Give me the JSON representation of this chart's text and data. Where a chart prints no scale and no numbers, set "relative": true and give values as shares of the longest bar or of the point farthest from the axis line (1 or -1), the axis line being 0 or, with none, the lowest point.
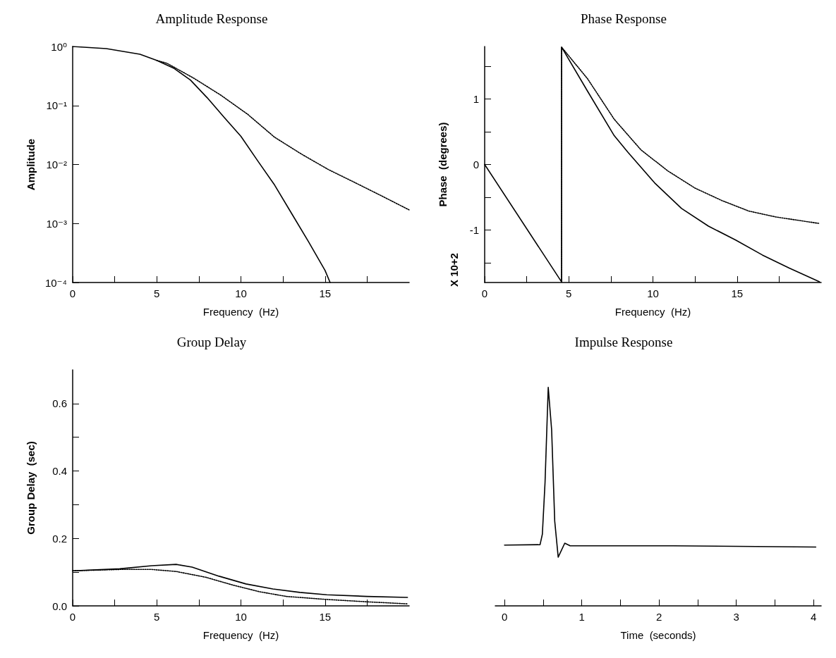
{
  "chart_data": [
    {
      "type": "line",
      "title": "Amplitude Response",
      "xlabel": "Frequency  (Hz)",
      "ylabel": "Amplitude",
      "log": true,
      "grid": false,
      "marker": "none",
      "xlim": [
        0,
        20
      ],
      "xticks": [
        0,
        {
          "value": 2.5,
          "label": null
        },
        5,
        {
          "value": 7.5,
          "label": null
        },
        10,
        {
          "value": 12.5,
          "label": null
        },
        15,
        {
          "value": 17.5,
          "label": null
        }
      ],
      "ylim": [
        0.0001,
        1
      ],
      "yticks": [
        {
          "value": 1,
          "label": "10⁰"
        },
        {
          "value": 0.1,
          "label": "10⁻¹"
        },
        {
          "value": 0.01,
          "label": "10⁻²"
        },
        {
          "value": 0.001,
          "label": "10⁻³"
        },
        {
          "value": 0.0001,
          "label": "10⁻⁴"
        }
      ],
      "series": [
        {
          "color": "#000000",
          "line_style": "solid",
          "x": [
            0,
            2,
            4,
            5,
            6,
            7,
            8,
            9,
            10,
            11,
            12,
            13,
            14,
            15,
            15.3
          ],
          "values": [
            1,
            0.92,
            0.74,
            0.58,
            0.43,
            0.27,
            0.135,
            0.063,
            0.03,
            0.0115,
            0.0045,
            0.0015,
            0.0005,
            0.00016,
            0.0001
          ]
        },
        {
          "color": "#000000",
          "line_style": "dotted",
          "x": [
            5,
            5.6,
            7.2,
            8.8,
            10.4,
            12,
            13.6,
            15.2,
            16.8,
            18.4,
            20
          ],
          "values": [
            0.58,
            0.52,
            0.29,
            0.15,
            0.071,
            0.029,
            0.015,
            0.0082,
            0.0049,
            0.0029,
            0.0017
          ]
        }
      ]
    },
    {
      "type": "line",
      "title": "Phase Response",
      "xlabel": "Frequency  (Hz)",
      "ylabel": "Phase  (degrees)",
      "annotations": [
        "X 10+2"
      ],
      "grid": false,
      "marker": "none",
      "xlim": [
        0,
        20
      ],
      "xticks": [
        0,
        {
          "value": 2.5,
          "label": null
        },
        5,
        {
          "value": 7.5,
          "label": null
        },
        10,
        {
          "value": 12.5,
          "label": null
        },
        15,
        {
          "value": 17.5,
          "label": null
        }
      ],
      "ylim": [
        -1.8,
        1.8
      ],
      "yticks": [
        {
          "value": -1.5,
          "label": null
        },
        -1,
        {
          "value": -0.5,
          "label": null
        },
        0,
        {
          "value": 0.5,
          "label": null
        },
        1,
        {
          "value": 1.5,
          "label": null
        }
      ],
      "series": [
        {
          "color": "#000000",
          "line_style": "solid",
          "x": [
            0,
            4.57,
            4.57,
            6.11,
            7.7,
            8.5,
            10.1,
            11.7,
            13.3,
            14.9,
            16.5,
            18.1,
            19.9
          ],
          "values": [
            0,
            -1.79,
            1.79,
            1.12,
            0.44,
            0.19,
            -0.28,
            -0.67,
            -0.94,
            -1.15,
            -1.38,
            -1.58,
            -1.79
          ]
        },
        {
          "color": "#000000",
          "line_style": "dotted",
          "x": [
            4.57,
            4.57,
            6.11,
            7.7,
            9.3,
            10.9,
            12.5,
            14.1,
            15.7,
            17.3,
            19.9
          ],
          "values": [
            -1.79,
            1.79,
            1.31,
            0.69,
            0.22,
            -0.1,
            -0.36,
            -0.55,
            -0.71,
            -0.8,
            -0.9
          ]
        }
      ]
    },
    {
      "type": "line",
      "title": "Group Delay",
      "xlabel": "Frequency  (Hz)",
      "ylabel": "Group Delay  (sec)",
      "grid": false,
      "marker": "none",
      "xlim": [
        0,
        20
      ],
      "xticks": [
        0,
        {
          "value": 2.5,
          "label": null
        },
        5,
        {
          "value": 7.5,
          "label": null
        },
        10,
        {
          "value": 12.5,
          "label": null
        },
        15,
        {
          "value": 17.5,
          "label": null
        }
      ],
      "ylim": [
        0,
        0.7
      ],
      "yticks": [
        {
          "value": 0,
          "label": "0.0"
        },
        {
          "value": 0.1,
          "label": null
        },
        {
          "value": 0.2,
          "label": "0.2"
        },
        {
          "value": 0.3,
          "label": null
        },
        {
          "value": 0.4,
          "label": "0.4"
        },
        {
          "value": 0.5,
          "label": null
        },
        {
          "value": 0.6,
          "label": "0.6"
        }
      ],
      "series": [
        {
          "color": "#000000",
          "line_style": "solid",
          "x": [
            0,
            2.8,
            4.7,
            6.15,
            7.1,
            8.7,
            10.3,
            11.9,
            13.5,
            15.1,
            17.5,
            19.9
          ],
          "values": [
            0.104,
            0.11,
            0.119,
            0.123,
            0.115,
            0.088,
            0.065,
            0.05,
            0.04,
            0.033,
            0.028,
            0.025
          ]
        },
        {
          "color": "#000000",
          "line_style": "dotted",
          "x": [
            0,
            2.8,
            4.7,
            6.15,
            7.9,
            9.5,
            11.1,
            12.7,
            15.1,
            17.5,
            19.9
          ],
          "values": [
            0.104,
            0.108,
            0.108,
            0.102,
            0.085,
            0.062,
            0.042,
            0.028,
            0.019,
            0.012,
            0.006
          ]
        }
      ]
    },
    {
      "type": "line",
      "title": "Impulse Response",
      "xlabel": "Time  (seconds)",
      "relative": true,
      "grid": false,
      "marker": "none",
      "xlim": [
        -0.12,
        4.1
      ],
      "xticks": [
        0,
        {
          "value": 0.5,
          "label": null
        },
        1,
        {
          "value": 1.5,
          "label": null
        },
        2,
        {
          "value": 2.5,
          "label": null
        },
        3,
        {
          "value": 3.5,
          "label": null
        },
        4
      ],
      "series": [
        {
          "color": "#000000",
          "line_style": "solid",
          "x": [
            0,
            0.46,
            0.49,
            0.525,
            0.566,
            0.61,
            0.65,
            0.695,
            0.78,
            0.85,
            2.19,
            4.03
          ],
          "values": [
            0.278,
            0.28,
            0.328,
            0.567,
            1,
            0.806,
            0.388,
            0.223,
            0.287,
            0.275,
            0.275,
            0.269
          ]
        }
      ]
    }
  ]
}
